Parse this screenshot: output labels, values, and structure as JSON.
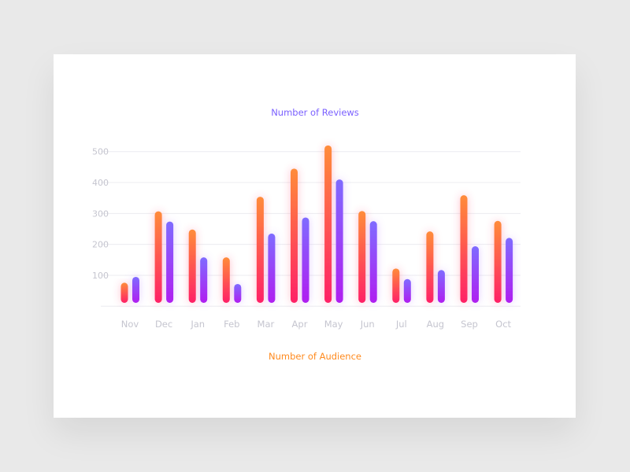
{
  "chart_data": {
    "type": "bar",
    "title": "Number of Reviews",
    "subtitle": "Number of Audience",
    "categories": [
      "Nov",
      "Dec",
      "Jan",
      "Feb",
      "Mar",
      "Apr",
      "May",
      "Jun",
      "Jul",
      "Aug",
      "Sep",
      "Oct"
    ],
    "series": [
      {
        "name": "Number of Audience",
        "color_top": "#ff8c3a",
        "color_bottom": "#ff2066",
        "values": [
          76,
          307,
          248,
          158,
          354,
          445,
          520,
          308,
          122,
          242,
          359,
          276
        ]
      },
      {
        "name": "Number of Reviews",
        "color_top": "#7f6bff",
        "color_bottom": "#b01ef0",
        "values": [
          95,
          274,
          158,
          72,
          235,
          287,
          410,
          275,
          88,
          117,
          194,
          221
        ]
      }
    ],
    "yticks": [
      100,
      200,
      300,
      400,
      500
    ],
    "ylim": [
      0,
      500
    ],
    "grid": true,
    "title_color": "#7b61ff",
    "subtitle_color": "#ff8a1e"
  }
}
